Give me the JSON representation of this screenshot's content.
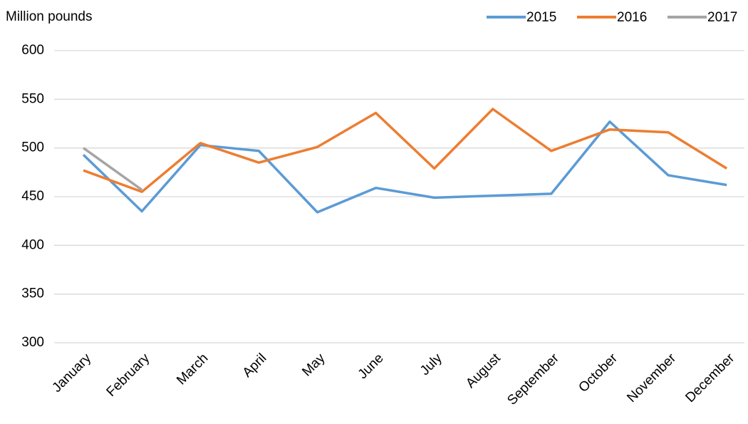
{
  "chart_data": {
    "type": "line",
    "y_axis_label": "Million pounds",
    "categories": [
      "January",
      "February",
      "March",
      "April",
      "May",
      "June",
      "July",
      "August",
      "September",
      "October",
      "November",
      "December"
    ],
    "series": [
      {
        "name": "2015",
        "color": "#5b9bd5",
        "values": [
          493,
          435,
          503,
          497,
          434,
          459,
          449,
          451,
          453,
          527,
          472,
          462
        ]
      },
      {
        "name": "2016",
        "color": "#ed7d31",
        "values": [
          477,
          455,
          505,
          485,
          501,
          536,
          479,
          540,
          497,
          519,
          516,
          479
        ]
      },
      {
        "name": "2017",
        "color": "#a5a5a5",
        "values": [
          500,
          457,
          null,
          null,
          null,
          null,
          null,
          null,
          null,
          null,
          null,
          null
        ]
      }
    ],
    "ylim": [
      300,
      600
    ],
    "yticks": [
      300,
      350,
      400,
      450,
      500,
      550,
      600
    ],
    "grid": true,
    "legend": "top-right"
  }
}
